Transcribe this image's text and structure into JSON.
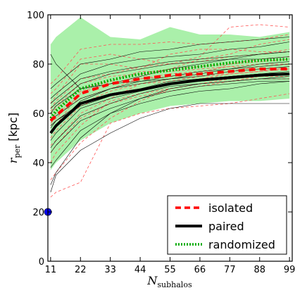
{
  "chart_data": {
    "type": "line",
    "title": "",
    "xlabel": {
      "main": "N",
      "sub": "subhalos"
    },
    "ylabel": {
      "main": "r",
      "sub": "per",
      "unit": " [kpc]"
    },
    "xlim": [
      10,
      100
    ],
    "ylim": [
      0,
      100
    ],
    "xticks": [
      11,
      22,
      33,
      44,
      55,
      66,
      77,
      88,
      99
    ],
    "yticks": [
      0,
      20,
      40,
      60,
      80,
      100
    ],
    "x": [
      11,
      13,
      22,
      33,
      44,
      55,
      66,
      77,
      88,
      99
    ],
    "band": {
      "upper": [
        88,
        91,
        99,
        91,
        90,
        95,
        92,
        92,
        91,
        93
      ],
      "lower": [
        37,
        40,
        49,
        56,
        60,
        63,
        64,
        65,
        65,
        66
      ],
      "color": "#aaf0aa"
    },
    "series": [
      {
        "name": "isolated",
        "values": [
          57,
          59,
          68,
          72,
          74,
          75.5,
          76,
          77,
          78,
          78
        ],
        "color": "#ff0000",
        "style": "dashed"
      },
      {
        "name": "paired",
        "values": [
          52,
          55,
          64,
          67.5,
          69.5,
          72,
          73.5,
          74.5,
          75.5,
          76
        ],
        "color": "#000000",
        "style": "solid"
      },
      {
        "name": "randomized",
        "values": [
          58,
          61,
          70,
          73.5,
          76,
          77.5,
          79,
          80.5,
          81.5,
          82
        ],
        "color": "#00aa00",
        "style": "dotted"
      }
    ],
    "background_lines": {
      "isolated_color": "#ff5555",
      "paired_color": "#000000",
      "isolated": [
        [
          47,
          49,
          60,
          66,
          72,
          73,
          75,
          76,
          77,
          78
        ],
        [
          52,
          55,
          69,
          72,
          74,
          75,
          76,
          80,
          82,
          83
        ],
        [
          60,
          62,
          70,
          73,
          77,
          77,
          78,
          79,
          80,
          80
        ],
        [
          64,
          67,
          80,
          80,
          78,
          84,
          86,
          86,
          85,
          85
        ],
        [
          26,
          28,
          32,
          56,
          60,
          62,
          63,
          64,
          66,
          68
        ],
        [
          40,
          44,
          55,
          65,
          68,
          70,
          72,
          74,
          75,
          76
        ],
        [
          58,
          60,
          66,
          70,
          74,
          76,
          77,
          79,
          78,
          78
        ],
        [
          62,
          65,
          74,
          76,
          79,
          80,
          83,
          95,
          96,
          95
        ],
        [
          33,
          36,
          48,
          58,
          65,
          70,
          72,
          73,
          74,
          74
        ],
        [
          50,
          53,
          63,
          68,
          70,
          72,
          74,
          76,
          77,
          79
        ],
        [
          56,
          58,
          68,
          72,
          75,
          78,
          82,
          84,
          88,
          90
        ],
        [
          68,
          70,
          82,
          84,
          82,
          80,
          81,
          83,
          84,
          86
        ],
        [
          44,
          47,
          58,
          64,
          67,
          69,
          71,
          73,
          75,
          75
        ],
        [
          55,
          57,
          64,
          69,
          72,
          74,
          75,
          77,
          79,
          80
        ],
        [
          72,
          74,
          86,
          88,
          88,
          89,
          88,
          89,
          90,
          92
        ],
        [
          61,
          63,
          72,
          75,
          76,
          78,
          79,
          80,
          81,
          82
        ]
      ],
      "paired": [
        [
          28,
          35,
          45,
          52,
          58,
          62,
          64,
          64,
          64,
          64
        ],
        [
          44,
          47,
          57,
          62,
          66,
          70,
          72,
          73,
          74,
          74
        ],
        [
          54,
          57,
          64,
          68,
          70,
          73,
          74,
          75,
          76,
          77
        ],
        [
          60,
          63,
          70,
          72,
          73,
          74,
          76,
          78,
          80,
          81
        ],
        [
          84,
          80,
          70,
          72,
          75,
          78,
          80,
          82,
          84,
          85
        ],
        [
          49,
          52,
          62,
          66,
          69,
          72,
          74,
          75,
          76,
          76
        ],
        [
          38,
          41,
          53,
          60,
          64,
          67,
          69,
          70,
          72,
          73
        ],
        [
          66,
          68,
          76,
          80,
          82,
          83,
          84,
          86,
          87,
          89
        ],
        [
          57,
          59,
          66,
          70,
          72,
          74,
          75,
          77,
          78,
          79
        ],
        [
          46,
          49,
          59,
          64,
          68,
          71,
          72,
          73,
          74,
          75
        ],
        [
          62,
          64,
          72,
          76,
          78,
          80,
          81,
          82,
          82,
          83
        ],
        [
          52,
          55,
          65,
          70,
          73,
          75,
          77,
          78,
          79,
          80
        ],
        [
          31,
          36,
          50,
          60,
          66,
          69,
          71,
          72,
          73,
          73
        ],
        [
          70,
          72,
          80,
          82,
          85,
          86,
          88,
          89,
          90,
          91
        ],
        [
          55,
          57,
          63,
          67,
          70,
          72,
          73,
          74,
          75,
          76
        ],
        [
          64,
          66,
          74,
          77,
          79,
          81,
          82,
          83,
          84,
          85
        ]
      ]
    },
    "points": [
      {
        "x": 10,
        "y": 20,
        "color": "#0000ff"
      }
    ],
    "legend": {
      "position": "bottom-right",
      "entries": [
        "isolated",
        "paired",
        "randomized"
      ]
    },
    "grid": false
  }
}
